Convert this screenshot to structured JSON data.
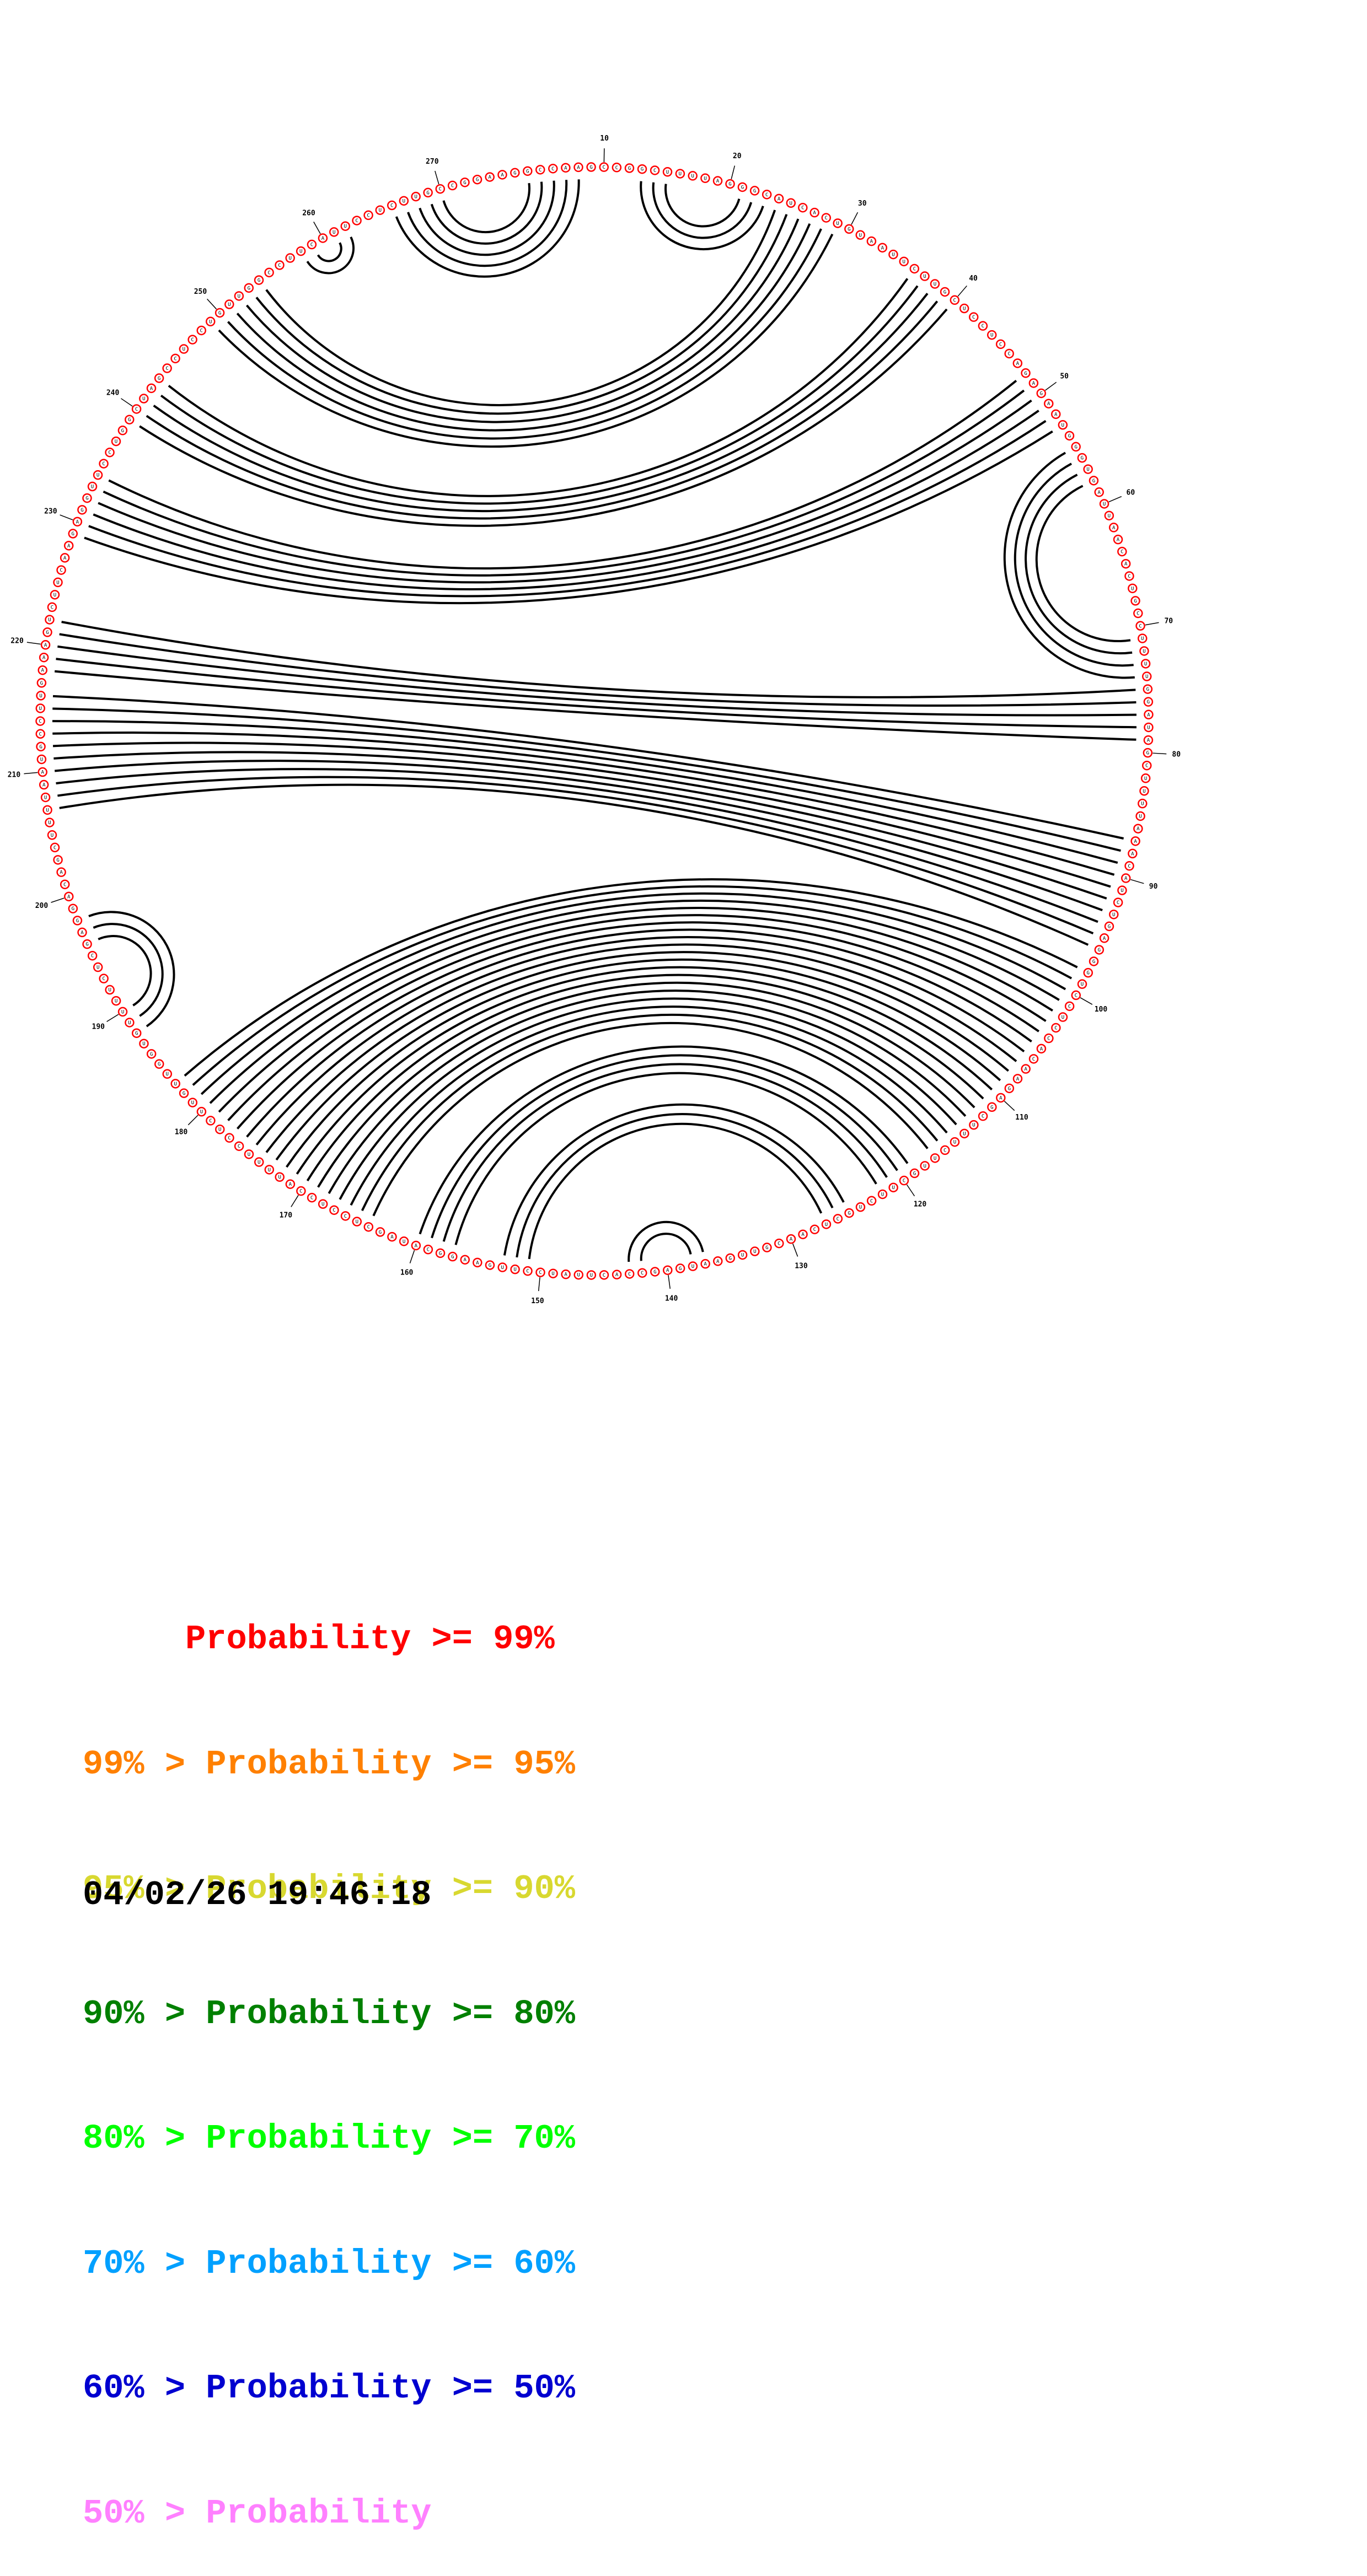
{
  "diagram": {
    "sequence_length": 273,
    "sequence": "AAGGCCAAGCCGGCUUUUAGGGCAUCACUGUAAUUCUUGCUCCUCCAGAGAAUGGGUGAUUAACACUGCCUUUUGGAUAGCUUUUAAACAUCUGAGGGUCCUCCACAAGAGCUUUCUUGCUUCUGCUCAACGUUGAAUGAGCCACUUAUCCUUGAAGGCAUAGCUCCUCCAUUUUCCUCUUGUUGGUGUUUUCUCGAGGACAGCUUUUAAUGCCUUGAAAGUCUUCAAGAGGUUCCUGGCUAGCCUCCUGUUGGCCUUCAUUCCUCUUGCCGGAGAUUUC",
    "base_probability_bin": "AAAAAAAAAAAAAAAAAAAAAAAAAAAAAAAAAAAAAAAAAAAAAAAAAAAAAAAAAAAAAAAAAAAAAAAAAAAAAAAAAAAAAAAAAAAAAAAAAAAAAAAAAAAAAAAAAAAAAAAAAAAAAAAAAAAAAAAAAAAAAAAAAAAAAAAAAAAAAAAAAAAAAAAAAAAAAAAAAAAAAAAAAAAAAAAAAAAAAAAAAAAAAAAAAAAAAAAAAAAAAAAAAAAAAAAAAAAAAAAAAAAAAAAAAAAAAAAAAAAAAAAAAAAAAAA",
    "probability_colors": [
      "#ff0000",
      "#ff8000",
      "#d8d830",
      "#008000",
      "#00ff00",
      "#00a0ff",
      "#0000d0",
      "#ff80ff"
    ],
    "position_labels": [
      "10",
      "20",
      "30",
      "40",
      "50",
      "60",
      "70",
      "80",
      "90",
      "100",
      "110",
      "120",
      "130",
      "140",
      "150",
      "160",
      "170",
      "180",
      "190",
      "200",
      "210",
      "220",
      "230",
      "240",
      "250",
      "260",
      "270"
    ],
    "base_pairs": [
      [
        4,
        270
      ],
      [
        5,
        269
      ],
      [
        6,
        268
      ],
      [
        7,
        267
      ],
      [
        8,
        266
      ],
      [
        13,
        23
      ],
      [
        14,
        22
      ],
      [
        15,
        21
      ],
      [
        24,
        254
      ],
      [
        25,
        253
      ],
      [
        26,
        252
      ],
      [
        27,
        251
      ],
      [
        28,
        250
      ],
      [
        29,
        249
      ],
      [
        36,
        243
      ],
      [
        37,
        242
      ],
      [
        38,
        241
      ],
      [
        39,
        240
      ],
      [
        40,
        239
      ],
      [
        48,
        234
      ],
      [
        49,
        233
      ],
      [
        50,
        232
      ],
      [
        51,
        231
      ],
      [
        52,
        230
      ],
      [
        53,
        229
      ],
      [
        55,
        74
      ],
      [
        56,
        73
      ],
      [
        57,
        72
      ],
      [
        58,
        71
      ],
      [
        75,
        222
      ],
      [
        76,
        221
      ],
      [
        77,
        220
      ],
      [
        78,
        219
      ],
      [
        79,
        218
      ],
      [
        87,
        216
      ],
      [
        88,
        215
      ],
      [
        89,
        214
      ],
      [
        90,
        213
      ],
      [
        91,
        212
      ],
      [
        92,
        211
      ],
      [
        93,
        210
      ],
      [
        94,
        209
      ],
      [
        95,
        208
      ],
      [
        96,
        207
      ],
      [
        98,
        183
      ],
      [
        99,
        182
      ],
      [
        100,
        181
      ],
      [
        101,
        180
      ],
      [
        102,
        179
      ],
      [
        103,
        178
      ],
      [
        104,
        177
      ],
      [
        105,
        176
      ],
      [
        106,
        175
      ],
      [
        107,
        174
      ],
      [
        108,
        173
      ],
      [
        109,
        172
      ],
      [
        110,
        171
      ],
      [
        111,
        170
      ],
      [
        112,
        169
      ],
      [
        113,
        168
      ],
      [
        114,
        167
      ],
      [
        115,
        166
      ],
      [
        116,
        165
      ],
      [
        117,
        164
      ],
      [
        119,
        160
      ],
      [
        120,
        159
      ],
      [
        121,
        158
      ],
      [
        122,
        157
      ],
      [
        125,
        153
      ],
      [
        126,
        152
      ],
      [
        127,
        151
      ],
      [
        137,
        143
      ],
      [
        138,
        142
      ],
      [
        188,
        198
      ],
      [
        189,
        197
      ],
      [
        190,
        196
      ],
      [
        258,
        262
      ],
      [
        259,
        261
      ]
    ]
  },
  "legend": [
    {
      "text": "     Probability >= 99%",
      "color": "#ff0000"
    },
    {
      "text": "99% > Probability >= 95%",
      "color": "#ff8000"
    },
    {
      "text": "95% > Probability >= 90%",
      "color": "#d8d830"
    },
    {
      "text": "90% > Probability >= 80%",
      "color": "#008000"
    },
    {
      "text": "80% > Probability >= 70%",
      "color": "#00ff00"
    },
    {
      "text": "70% > Probability >= 60%",
      "color": "#00a0ff"
    },
    {
      "text": "60% > Probability >= 50%",
      "color": "#0000d0"
    },
    {
      "text": "50% > Probability",
      "color": "#ff80ff"
    }
  ],
  "timestamp": "04/02/26 19:46:18"
}
